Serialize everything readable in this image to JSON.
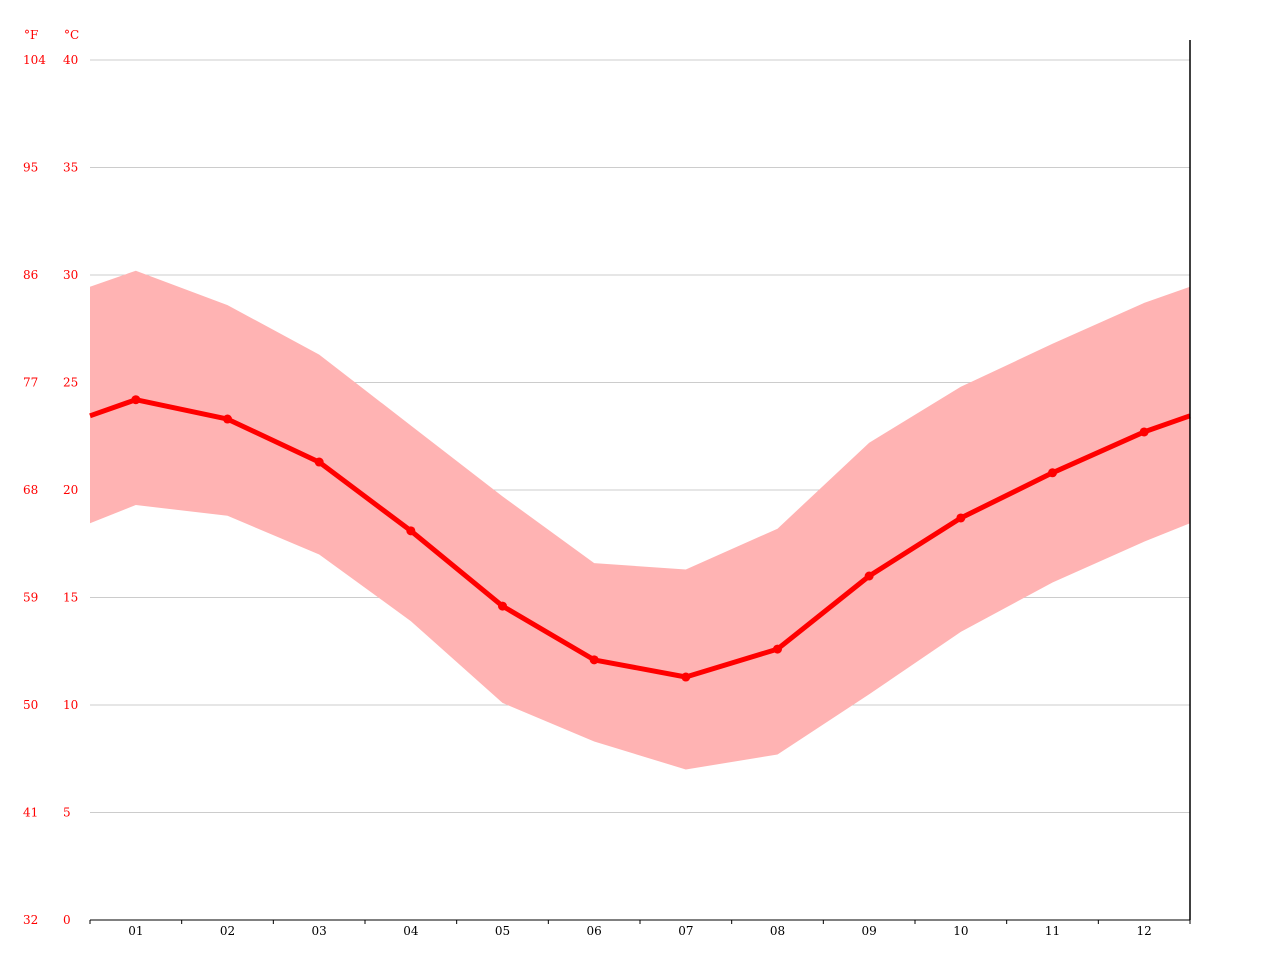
{
  "chart_data": {
    "type": "line",
    "title": "",
    "xlabel": "",
    "ylabel": "",
    "units": {
      "fahrenheit": "°F",
      "celsius": "°C"
    },
    "categories": [
      "01",
      "02",
      "03",
      "04",
      "05",
      "06",
      "07",
      "08",
      "09",
      "10",
      "11",
      "12"
    ],
    "series": [
      {
        "values": [
          24.2,
          23.3,
          21.3,
          18.1,
          14.6,
          12.1,
          11.3,
          12.6,
          16.0,
          18.7,
          20.8,
          22.7
        ]
      }
    ],
    "range": {
      "max": [
        30.2,
        28.6,
        26.3,
        23.0,
        19.7,
        16.6,
        16.3,
        18.2,
        22.2,
        24.8,
        26.8,
        28.7
      ],
      "min": [
        19.3,
        18.8,
        17.0,
        13.9,
        10.1,
        8.3,
        7.0,
        7.7,
        10.5,
        13.4,
        15.7,
        17.6
      ]
    },
    "ylim": [
      0,
      40
    ],
    "y_ticks_c": [
      "0",
      "5",
      "10",
      "15",
      "20",
      "25",
      "30",
      "35",
      "40"
    ],
    "y_ticks_f": [
      "32",
      "41",
      "50",
      "59",
      "68",
      "77",
      "86",
      "95",
      "104"
    ],
    "grid": true,
    "legend": "none",
    "colors": {
      "line": "#ff0000",
      "band": "#ffb3b3",
      "grid": "#cccccc",
      "tick_text": "#ff0000",
      "axis": "#000000"
    }
  }
}
